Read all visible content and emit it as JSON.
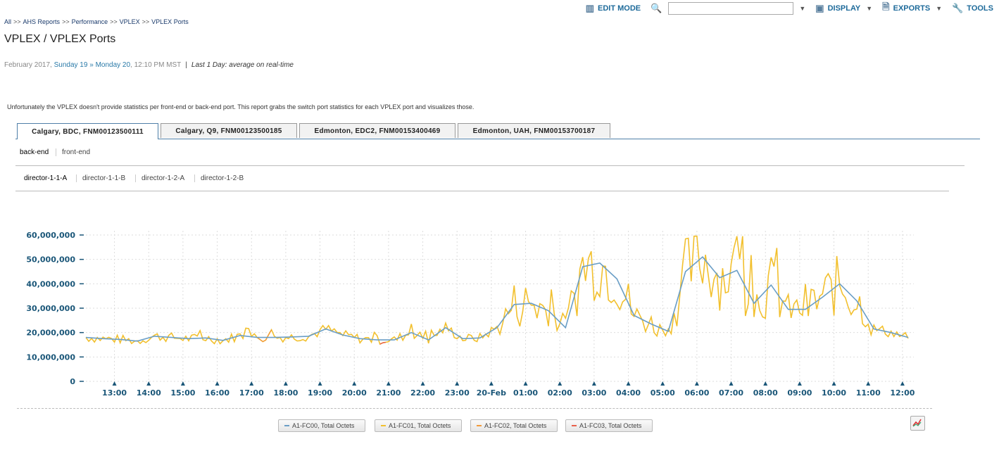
{
  "breadcrumb": [
    "All",
    "AHS Reports",
    "Performance",
    "VPLEX",
    "VPLEX Ports"
  ],
  "breadcrumb_sep": ">>",
  "toolbar": {
    "edit_mode": "EDIT MODE",
    "search_value": "",
    "display": "DISPLAY",
    "exports": "EXPORTS",
    "tools": "TOOLS"
  },
  "title": "VPLEX / VPLEX Ports",
  "daterange": {
    "prefix": "February 2017, ",
    "from": "Sunday 19",
    "arrow": " » ",
    "to": "Monday 20",
    "time": ", 12:10 PM MST",
    "divider": "|",
    "desc": "Last 1 Day: average on real-time"
  },
  "intro": "Unfortunately the VPLEX doesn't provide statistics per front-end or back-end port. This report grabs the switch port statistics for each VPLEX port and visualizes those.",
  "tabs": [
    "Calgary, BDC, FNM00123500111",
    "Calgary, Q9, FNM00123500185",
    "Edmonton, EDC2, FNM00153400469",
    "Edmonton, UAH, FNM00153700187"
  ],
  "subtabs": [
    "back-end",
    "front-end"
  ],
  "directors": [
    "director-1-1-A",
    "director-1-1-B",
    "director-1-2-A",
    "director-1-2-B"
  ],
  "colors": {
    "series0": "#6a9ec6",
    "series1": "#f2c02e",
    "series2": "#f29a3a",
    "series3": "#e8604a"
  },
  "chart_data": {
    "type": "line",
    "y_ticks": [
      "0",
      "10,000,000",
      "20,000,000",
      "30,000,000",
      "40,000,000",
      "50,000,000",
      "60,000,000"
    ],
    "ylim": [
      0,
      60000000
    ],
    "x_ticks": [
      "13:00",
      "14:00",
      "15:00",
      "16:00",
      "17:00",
      "18:00",
      "19:00",
      "20:00",
      "21:00",
      "22:00",
      "23:00",
      "20-Feb",
      "01:00",
      "02:00",
      "03:00",
      "04:00",
      "05:00",
      "06:00",
      "07:00",
      "08:00",
      "09:00",
      "10:00",
      "11:00",
      "12:00"
    ],
    "x_range": [
      "12:10",
      "12:10"
    ],
    "grid": true,
    "series": [
      {
        "name": "A1-FC00, Total Octets",
        "x_hours": [
          0,
          0.5,
          1,
          1.5,
          2,
          2.5,
          3,
          3.5,
          4,
          4.5,
          5,
          5.5,
          6,
          6.5,
          7,
          7.5,
          8,
          8.5,
          9,
          9.5,
          10,
          10.5,
          11,
          11.5,
          12,
          12.5,
          13,
          13.5,
          14,
          14.5,
          15,
          15.5,
          16,
          16.5,
          17,
          17.5,
          18,
          18.5,
          19,
          19.5,
          20,
          20.5,
          21,
          21.5,
          22,
          22.5,
          23,
          23.5,
          24
        ],
        "values": [
          18000000,
          17500000,
          17200000,
          16500000,
          18500000,
          18000000,
          17500000,
          17800000,
          16800000,
          18800000,
          18000000,
          18000000,
          18200000,
          18500000,
          21500000,
          19000000,
          17500000,
          17000000,
          17000000,
          20000000,
          17000000,
          22000000,
          17500000,
          17800000,
          22000000,
          31500000,
          32000000,
          29000000,
          22000000,
          47000000,
          48500000,
          42000000,
          27000000,
          23500000,
          20500000,
          45000000,
          51000000,
          42500000,
          45500000,
          32000000,
          39500000,
          29500000,
          29500000,
          34500000,
          40000000,
          33000000,
          21500000,
          20000000,
          18000000
        ]
      },
      {
        "name": "A1-FC01, Total Octets",
        "x_hours": [],
        "values": []
      },
      {
        "name": "A1-FC02, Total Octets",
        "values": []
      },
      {
        "name": "A1-FC03, Total Octets",
        "values": []
      }
    ]
  }
}
